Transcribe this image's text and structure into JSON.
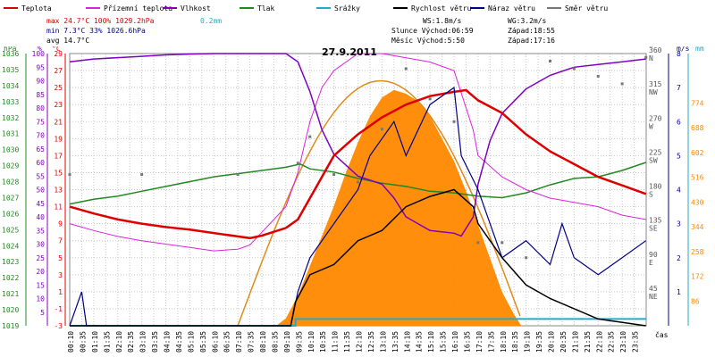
{
  "chart_data": {
    "type": "line",
    "title": "27.9.2011",
    "xlabel": "čas",
    "legend": [
      {
        "label": "Teplota",
        "color": "#dd0000"
      },
      {
        "label": "Přízemní teplota",
        "color": "#dd22dd"
      },
      {
        "label": "Vlhkost",
        "color": "#8000c0"
      },
      {
        "label": "Tlak",
        "color": "#228822"
      },
      {
        "label": "Srážky",
        "color": "#22aacc"
      },
      {
        "label": "Rychlost větru",
        "color": "#000000"
      },
      {
        "label": "Náraz větru",
        "color": "#000088"
      },
      {
        "label": "Směr větru",
        "color": "#777777"
      }
    ],
    "stats": {
      "max": {
        "label": "max",
        "temp": "24.7°C",
        "hum": "100%",
        "press": "1029.2hPa",
        "rain": "0.2mm"
      },
      "min": {
        "label": "min",
        "temp": "7.3°C",
        "hum": "33%",
        "press": "1026.6hPa"
      },
      "avg": {
        "label": "avg",
        "temp": "14.7°C"
      }
    },
    "wind_info": {
      "ws": "WS:1.8m/s",
      "wg": "WG:3.2m/s"
    },
    "sun_info": {
      "sunrise": "Slunce Východ:06:59",
      "sunset": "Západ:18:55"
    },
    "moon_info": {
      "moonrise": "Měsíc Východ:5:50",
      "moonset": "Západ:17:16"
    },
    "axes": {
      "hpa": {
        "unit": "hPa",
        "ticks": [
          "1036",
          "1035",
          "1034",
          "1033",
          "1032",
          "1031",
          "1030",
          "1029",
          "1028",
          "1027",
          "1026",
          "1025",
          "1024",
          "1023",
          "1022",
          "1021",
          "1020",
          "1019"
        ],
        "range": [
          1019,
          1036
        ]
      },
      "pct": {
        "unit": "%",
        "ticks": [
          "100",
          "95",
          "90",
          "85",
          "80",
          "75",
          "70",
          "65",
          "60",
          "55",
          "50",
          "45",
          "40",
          "35",
          "30",
          "25",
          "20",
          "15",
          "10",
          "5"
        ],
        "range": [
          10,
          100
        ]
      },
      "degc": {
        "unit": "°C",
        "ticks": [
          "29",
          "27",
          "25",
          "23",
          "21",
          "19",
          "17",
          "15",
          "13",
          "11",
          "9",
          "7",
          "5",
          "3",
          "1",
          "-1",
          "-3"
        ],
        "range": [
          -3,
          29
        ]
      },
      "dir": {
        "unit": "°",
        "ticks": [
          {
            "deg": "360",
            "dir": "N"
          },
          {
            "deg": "315",
            "dir": "NW"
          },
          {
            "deg": "270",
            "dir": "W"
          },
          {
            "deg": "225",
            "dir": "SW"
          },
          {
            "deg": "180",
            "dir": "S"
          },
          {
            "deg": "135",
            "dir": "SE"
          },
          {
            "deg": "90",
            "dir": "E"
          },
          {
            "deg": "45",
            "dir": "NE"
          }
        ]
      },
      "ms": {
        "unit": "m/s",
        "ticks": [
          "1",
          "2",
          "3",
          "4",
          "5",
          "6",
          "7",
          "8"
        ]
      },
      "mm": {
        "unit": "mm",
        "ticks": [
          "774",
          "688",
          "602",
          "516",
          "430",
          "344",
          "258",
          "172",
          "86"
        ]
      },
      "time": [
        "00:10",
        "00:35",
        "01:10",
        "01:35",
        "02:10",
        "02:35",
        "03:10",
        "03:35",
        "04:10",
        "04:35",
        "05:10",
        "05:35",
        "06:10",
        "06:35",
        "07:10",
        "07:35",
        "08:10",
        "08:35",
        "09:10",
        "09:35",
        "10:10",
        "10:35",
        "11:10",
        "11:35",
        "12:10",
        "12:35",
        "13:10",
        "13:35",
        "14:10",
        "14:35",
        "15:10",
        "15:35",
        "16:10",
        "16:35",
        "17:10",
        "17:35",
        "18:10",
        "18:35",
        "19:10",
        "19:35",
        "20:10",
        "20:35",
        "21:10",
        "21:35",
        "22:10",
        "22:35",
        "23:10",
        "23:35"
      ]
    },
    "series": {
      "temperature": {
        "name": "Teplota",
        "points": [
          [
            0,
            11
          ],
          [
            1,
            10.2
          ],
          [
            2,
            9.5
          ],
          [
            3,
            9
          ],
          [
            4,
            8.6
          ],
          [
            5,
            8.3
          ],
          [
            6,
            7.9
          ],
          [
            7,
            7.5
          ],
          [
            7.5,
            7.3
          ],
          [
            8,
            7.6
          ],
          [
            9,
            8.5
          ],
          [
            9.5,
            9.5
          ],
          [
            10,
            12
          ],
          [
            10.5,
            14.5
          ],
          [
            11,
            17
          ],
          [
            12,
            19.5
          ],
          [
            13,
            21.5
          ],
          [
            14,
            23
          ],
          [
            15,
            24
          ],
          [
            16,
            24.5
          ],
          [
            16.5,
            24.7
          ],
          [
            17,
            23.5
          ],
          [
            18,
            22
          ],
          [
            19,
            19.5
          ],
          [
            20,
            17.5
          ],
          [
            21,
            16
          ],
          [
            22,
            14.5
          ],
          [
            23,
            13.5
          ],
          [
            23.99,
            12.5
          ]
        ]
      },
      "ground_temperature": {
        "name": "Přízemní teplota",
        "points": [
          [
            0,
            9
          ],
          [
            1,
            8.2
          ],
          [
            2,
            7.5
          ],
          [
            3,
            7
          ],
          [
            4,
            6.6
          ],
          [
            5,
            6.2
          ],
          [
            6,
            5.8
          ],
          [
            7,
            6
          ],
          [
            7.5,
            6.5
          ],
          [
            8,
            8
          ],
          [
            9,
            11
          ],
          [
            9.5,
            15
          ],
          [
            10,
            21
          ],
          [
            10.5,
            25
          ],
          [
            11,
            27
          ],
          [
            12,
            29
          ],
          [
            13,
            29
          ],
          [
            14,
            28.5
          ],
          [
            15,
            28
          ],
          [
            16,
            27
          ],
          [
            16.8,
            20
          ],
          [
            17,
            17
          ],
          [
            18,
            14.5
          ],
          [
            19,
            13
          ],
          [
            20,
            12
          ],
          [
            21,
            11.5
          ],
          [
            22,
            11
          ],
          [
            23,
            10
          ],
          [
            23.99,
            9.5
          ]
        ]
      },
      "humidity": {
        "name": "Vlhkost",
        "points": [
          [
            0,
            97
          ],
          [
            1,
            98
          ],
          [
            2,
            98.5
          ],
          [
            3,
            99
          ],
          [
            4,
            99.5
          ],
          [
            5,
            99.8
          ],
          [
            6,
            100
          ],
          [
            7,
            100
          ],
          [
            8,
            100
          ],
          [
            9,
            100
          ],
          [
            9.5,
            97
          ],
          [
            10,
            86
          ],
          [
            10.5,
            72
          ],
          [
            11,
            63
          ],
          [
            12,
            55
          ],
          [
            13,
            52
          ],
          [
            13.5,
            47
          ],
          [
            14,
            40
          ],
          [
            15,
            35
          ],
          [
            16,
            34
          ],
          [
            16.3,
            33
          ],
          [
            16.8,
            40
          ],
          [
            17,
            52
          ],
          [
            17.5,
            68
          ],
          [
            18,
            78
          ],
          [
            19,
            87
          ],
          [
            20,
            92
          ],
          [
            21,
            95
          ],
          [
            22,
            96
          ],
          [
            23,
            97
          ],
          [
            23.99,
            98
          ]
        ]
      },
      "pressure": {
        "name": "Tlak",
        "points": [
          [
            0,
            1026.6
          ],
          [
            1,
            1026.9
          ],
          [
            2,
            1027.1
          ],
          [
            3,
            1027.4
          ],
          [
            4,
            1027.7
          ],
          [
            5,
            1028
          ],
          [
            6,
            1028.3
          ],
          [
            7,
            1028.5
          ],
          [
            8,
            1028.7
          ],
          [
            9,
            1028.9
          ],
          [
            9.6,
            1029.1
          ],
          [
            10,
            1028.8
          ],
          [
            11,
            1028.6
          ],
          [
            12,
            1028.2
          ],
          [
            13,
            1027.9
          ],
          [
            14,
            1027.7
          ],
          [
            15,
            1027.4
          ],
          [
            16,
            1027.3
          ],
          [
            17,
            1027.1
          ],
          [
            18,
            1027
          ],
          [
            19,
            1027.3
          ],
          [
            20,
            1027.8
          ],
          [
            21,
            1028.2
          ],
          [
            22,
            1028.3
          ],
          [
            23,
            1028.7
          ],
          [
            23.99,
            1029.2
          ]
        ]
      },
      "rain": {
        "name": "Srážky",
        "points": [
          [
            0,
            0
          ],
          [
            9.4,
            0
          ],
          [
            9.4,
            0.2
          ],
          [
            23.99,
            0.2
          ]
        ]
      },
      "wind_speed": {
        "name": "Rychlost větru",
        "points": [
          [
            0,
            0
          ],
          [
            9.2,
            0
          ],
          [
            9.4,
            0.7
          ],
          [
            10,
            1.5
          ],
          [
            11,
            1.8
          ],
          [
            12,
            2.5
          ],
          [
            13,
            2.8
          ],
          [
            14,
            3.5
          ],
          [
            15,
            3.8
          ],
          [
            16,
            4
          ],
          [
            16.8,
            3.5
          ],
          [
            17,
            3
          ],
          [
            18,
            2
          ],
          [
            19,
            1.2
          ],
          [
            20,
            0.8
          ],
          [
            21,
            0.5
          ],
          [
            22,
            0.2
          ],
          [
            23.99,
            0
          ]
        ]
      },
      "wind_gust": {
        "name": "Náraz větru",
        "points": [
          [
            0,
            0
          ],
          [
            0.5,
            1
          ],
          [
            0.7,
            0
          ],
          [
            9.2,
            0
          ],
          [
            9.5,
            1
          ],
          [
            10,
            2
          ],
          [
            11,
            3
          ],
          [
            12,
            4
          ],
          [
            12.5,
            5
          ],
          [
            13,
            5.5
          ],
          [
            13.5,
            6
          ],
          [
            14,
            5
          ],
          [
            15,
            6.5
          ],
          [
            16,
            7
          ],
          [
            16.3,
            5
          ],
          [
            17,
            4
          ],
          [
            17.5,
            3
          ],
          [
            18,
            2
          ],
          [
            19,
            2.5
          ],
          [
            20,
            1.8
          ],
          [
            20.5,
            3
          ],
          [
            21,
            2
          ],
          [
            22,
            1.5
          ],
          [
            23,
            2
          ],
          [
            23.99,
            2.5
          ]
        ]
      },
      "wind_direction": {
        "name": "Směr větru",
        "points": [
          [
            0,
            200
          ],
          [
            3,
            200
          ],
          [
            7,
            200
          ],
          [
            9.5,
            215
          ],
          [
            10,
            250
          ],
          [
            11,
            200
          ],
          [
            12,
            190
          ],
          [
            13,
            260
          ],
          [
            14,
            340
          ],
          [
            15,
            300
          ],
          [
            16,
            270
          ],
          [
            17,
            110
          ],
          [
            18,
            110
          ],
          [
            19,
            90
          ],
          [
            20,
            350
          ],
          [
            21,
            340
          ],
          [
            22,
            330
          ],
          [
            23,
            320
          ],
          [
            23.99,
            355
          ]
        ]
      }
    }
  }
}
